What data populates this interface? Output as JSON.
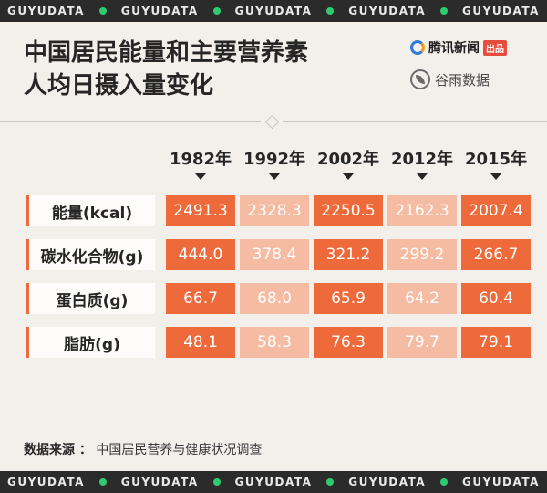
{
  "band_text": "GUYUDATA",
  "title_line1": "中国居民能量和主要营养素",
  "title_line2": "人均日摄入量变化",
  "logos": {
    "tencent_text": "腾讯新闻",
    "tencent_badge": "出品",
    "guyu_text": "谷雨数据"
  },
  "colors": {
    "dark": "#ee6a3a",
    "light": "#f6bba3",
    "label_accent": "#ee6a3a"
  },
  "chart_data": {
    "type": "table",
    "title": "中国居民能量和主要营养素人均日摄入量变化",
    "columns": [
      "1982年",
      "1992年",
      "2002年",
      "2012年",
      "2015年"
    ],
    "rows": [
      {
        "label": "能量(kcal)",
        "values": [
          "2491.3",
          "2328.3",
          "2250.5",
          "2162.3",
          "2007.4"
        ]
      },
      {
        "label": "碳水化合物(g)",
        "values": [
          "444.0",
          "378.4",
          "321.2",
          "299.2",
          "266.7"
        ]
      },
      {
        "label": "蛋白质(g)",
        "values": [
          "66.7",
          "68.0",
          "65.9",
          "64.2",
          "60.4"
        ]
      },
      {
        "label": "脂肪(g)",
        "values": [
          "48.1",
          "58.3",
          "76.3",
          "79.7",
          "79.1"
        ]
      }
    ],
    "column_shade": [
      "dark",
      "light",
      "dark",
      "light",
      "dark"
    ]
  },
  "footer": {
    "label": "数据来源 ：",
    "source": "中国居民营养与健康状况调查"
  }
}
